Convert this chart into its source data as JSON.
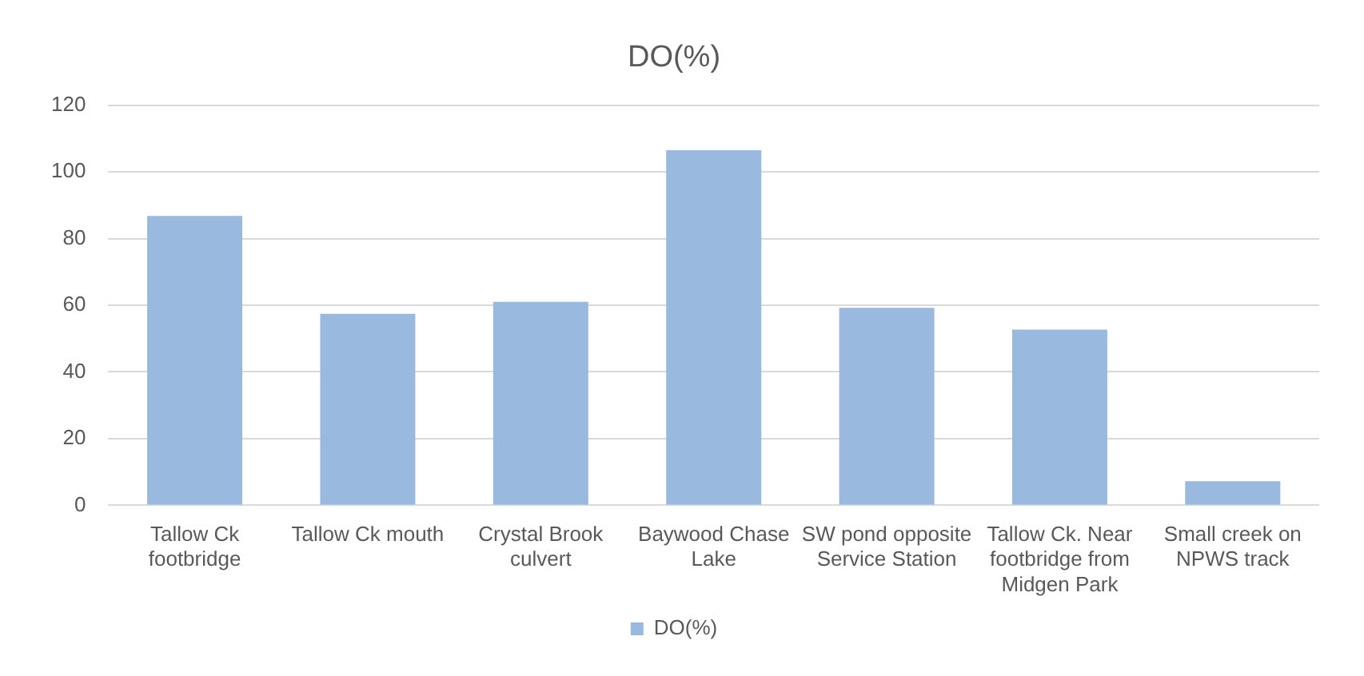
{
  "chart_data": {
    "type": "bar",
    "title": "DO(%)",
    "categories": [
      "Tallow Ck footbridge",
      "Tallow Ck mouth",
      "Crystal Brook culvert",
      "Baywood Chase Lake",
      "SW pond opposite Service Station",
      "Tallow Ck. Near footbridge from Midgen Park",
      "Small creek on NPWS track"
    ],
    "series": [
      {
        "name": "DO(%)",
        "color": "#99b9df",
        "values": [
          86.8,
          57.4,
          61,
          106.5,
          59.2,
          52.7,
          7.2
        ]
      }
    ],
    "ylim": [
      0,
      120
    ],
    "yticks": [
      0,
      20,
      40,
      60,
      80,
      100,
      120
    ],
    "grid": "y",
    "legend": "bottom"
  }
}
